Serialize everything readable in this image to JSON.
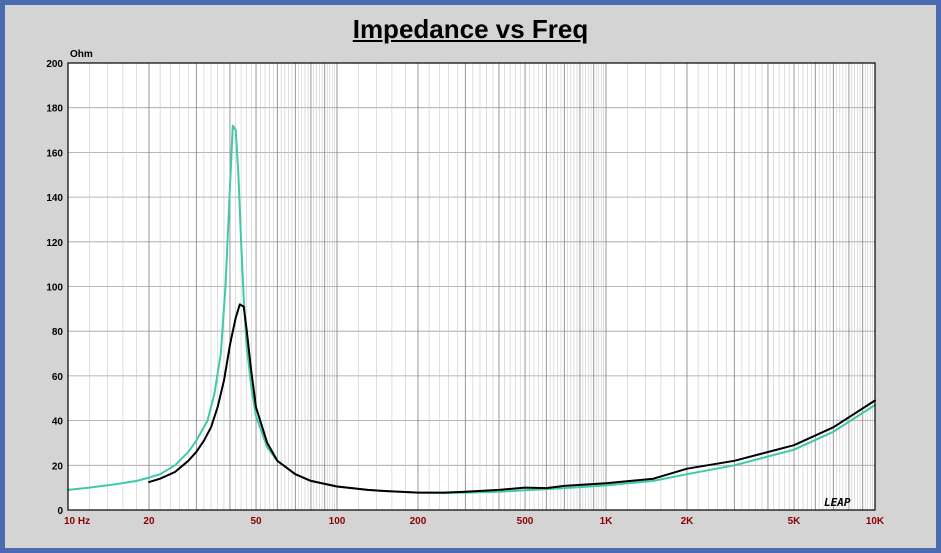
{
  "chart_data": {
    "type": "line",
    "title": "Impedance vs Freq",
    "ylabel": "Ohm",
    "xlabel": "",
    "x_scale": "log",
    "xlim": [
      10,
      10000
    ],
    "ylim": [
      0,
      200
    ],
    "y_ticks": [
      0,
      20,
      40,
      60,
      80,
      100,
      120,
      140,
      160,
      180,
      200
    ],
    "x_ticks": [
      {
        "value": 10,
        "label": "10  Hz"
      },
      {
        "value": 20,
        "label": "20"
      },
      {
        "value": 50,
        "label": "50"
      },
      {
        "value": 100,
        "label": "100"
      },
      {
        "value": 200,
        "label": "200"
      },
      {
        "value": 500,
        "label": "500"
      },
      {
        "value": 1000,
        "label": "1K"
      },
      {
        "value": 2000,
        "label": "2K"
      },
      {
        "value": 5000,
        "label": "5K"
      },
      {
        "value": 10000,
        "label": "10K"
      }
    ],
    "grid": true,
    "logo_text": "LEAP",
    "series": [
      {
        "color": "#40c8a8",
        "points": [
          [
            10,
            9
          ],
          [
            12,
            10
          ],
          [
            15,
            11.5
          ],
          [
            18,
            13
          ],
          [
            20,
            14.5
          ],
          [
            22,
            16
          ],
          [
            25,
            20
          ],
          [
            28,
            26
          ],
          [
            30,
            31
          ],
          [
            33,
            40
          ],
          [
            35,
            52
          ],
          [
            37,
            70
          ],
          [
            38.5,
            100
          ],
          [
            40,
            145
          ],
          [
            41,
            172
          ],
          [
            42,
            170
          ],
          [
            43,
            150
          ],
          [
            44,
            120
          ],
          [
            45,
            95
          ],
          [
            46,
            75
          ],
          [
            48,
            55
          ],
          [
            50,
            42
          ],
          [
            55,
            28
          ],
          [
            60,
            22
          ],
          [
            70,
            16
          ],
          [
            80,
            13
          ],
          [
            100,
            10.5
          ],
          [
            130,
            9
          ],
          [
            150,
            8.5
          ],
          [
            200,
            7.8
          ],
          [
            250,
            7.6
          ],
          [
            300,
            7.8
          ],
          [
            400,
            8.2
          ],
          [
            500,
            8.8
          ],
          [
            700,
            9.8
          ],
          [
            1000,
            11
          ],
          [
            1500,
            13
          ],
          [
            2000,
            16
          ],
          [
            3000,
            20
          ],
          [
            5000,
            27
          ],
          [
            7000,
            35
          ],
          [
            10000,
            47
          ]
        ]
      },
      {
        "color": "#000000",
        "points": [
          [
            20,
            12.5
          ],
          [
            22,
            14
          ],
          [
            25,
            17
          ],
          [
            28,
            22
          ],
          [
            30,
            26
          ],
          [
            32,
            31
          ],
          [
            34,
            37
          ],
          [
            36,
            46
          ],
          [
            38,
            58
          ],
          [
            40,
            74
          ],
          [
            42,
            86
          ],
          [
            43.5,
            92
          ],
          [
            45,
            91
          ],
          [
            46,
            82
          ],
          [
            48,
            62
          ],
          [
            50,
            46
          ],
          [
            55,
            30
          ],
          [
            60,
            22
          ],
          [
            70,
            16
          ],
          [
            80,
            13
          ],
          [
            100,
            10.5
          ],
          [
            130,
            9
          ],
          [
            150,
            8.5
          ],
          [
            200,
            7.8
          ],
          [
            250,
            7.8
          ],
          [
            300,
            8.2
          ],
          [
            400,
            9
          ],
          [
            500,
            10
          ],
          [
            600,
            9.8
          ],
          [
            700,
            10.8
          ],
          [
            1000,
            12
          ],
          [
            1500,
            14
          ],
          [
            2000,
            18.5
          ],
          [
            3000,
            22
          ],
          [
            5000,
            29
          ],
          [
            7000,
            37
          ],
          [
            10000,
            49
          ]
        ]
      }
    ]
  }
}
